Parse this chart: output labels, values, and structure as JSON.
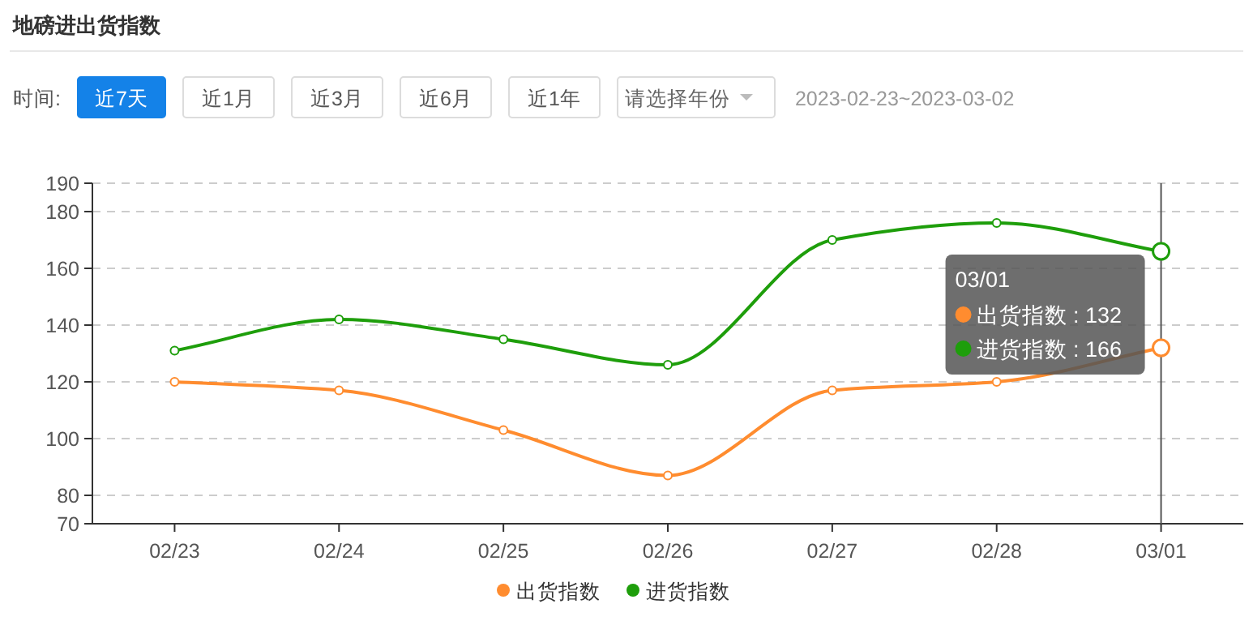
{
  "chart_data": {
    "type": "line",
    "title": "地磅进出货指数",
    "categories": [
      "02/23",
      "02/24",
      "02/25",
      "02/26",
      "02/27",
      "02/28",
      "03/01"
    ],
    "series": [
      {
        "name": "出货指数",
        "color": "#ff8c2f",
        "values": [
          120,
          117,
          103,
          87,
          117,
          120,
          132
        ]
      },
      {
        "name": "进货指数",
        "color": "#1e9e0b",
        "values": [
          131,
          142,
          135,
          126,
          170,
          176,
          166
        ]
      }
    ],
    "ylim": [
      70,
      190
    ],
    "yticks": [
      70,
      80,
      100,
      120,
      140,
      160,
      180,
      190
    ],
    "grid": "y",
    "legend": "bottom",
    "marker": "circle",
    "line_style": "solid",
    "ref_lines": [
      {
        "axis": "x",
        "value": "03/01",
        "color": "#555555"
      }
    ],
    "annotations": [
      "时间:",
      "近7天",
      "近1月",
      "近3月",
      "近6月",
      "近1年",
      "请选择年份",
      "2023-02-23~2023-03-02",
      "03/01",
      "出货指数 : 132",
      "进货指数 : 166"
    ]
  }
}
